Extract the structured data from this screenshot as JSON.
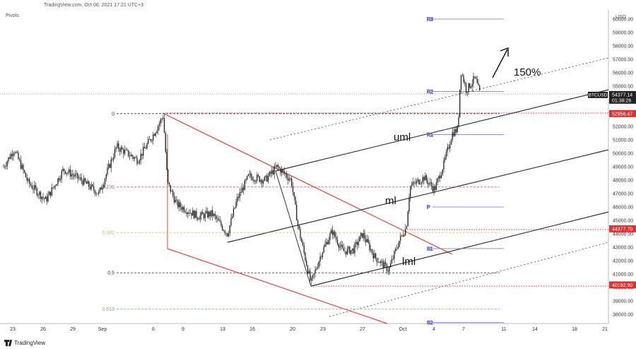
{
  "header": {
    "source_line": "TradingView.com, Oct 08, 2021 17:21 UTC+3",
    "indicator": "Pivots",
    "currency": "USD"
  },
  "footer": {
    "brand": "TradingView"
  },
  "colors": {
    "candle": "#111111",
    "pitchfork": "#333333",
    "red_lines": "#e0453a",
    "red_dotted": "#e03030",
    "pivot": "#6f6fc9",
    "fib_green": "#7ec27e",
    "fib_yellow": "#c9c24a",
    "fib_red": "#d06a6a",
    "price_tag": "#222222",
    "red_tag": "#e03030"
  },
  "chart_data": {
    "type": "candlestick",
    "symbol": "BTCUSD",
    "ylim": [
      37000,
      61500
    ],
    "y_ticks": [
      38000,
      39000,
      40000,
      41000,
      42000,
      43000,
      44000,
      45000,
      46000,
      47000,
      48000,
      49000,
      50000,
      51000,
      52000,
      53000,
      54000,
      55000,
      56000,
      57000,
      58000,
      59000,
      60000
    ],
    "y_tick_labels": [
      "38000.00",
      "39000.00",
      "40000.00",
      "41000.00",
      "42000.00",
      "43000.00",
      "44000.00",
      "45000.00",
      "46000.00",
      "47000.00",
      "48000.00",
      "49000.00",
      "50000.00",
      "51000.00",
      "52000.00",
      "53000.00",
      "54000.00",
      "55000.00",
      "56000.00",
      "57000.00",
      "58000.00",
      "59000.00",
      "60000.00"
    ],
    "x_ticks": [
      "23",
      "26",
      "29",
      "Sep",
      "6",
      "9",
      "13",
      "16",
      "20",
      "23",
      "27",
      "Oct",
      "4",
      "7",
      "11",
      "14",
      "18",
      "21"
    ],
    "price_tags": [
      {
        "value": 54377.14,
        "label": "54377.14",
        "sub": "01:38:26",
        "name": "BTCUSD",
        "kind": "current"
      },
      {
        "value": 52956.47,
        "label": "52956.47",
        "kind": "level"
      },
      {
        "value": 44377.7,
        "label": "44377.70",
        "kind": "level"
      },
      {
        "value": 40192.9,
        "label": "40192.90",
        "kind": "level"
      }
    ],
    "pivots": [
      {
        "label": "R3",
        "value": 60000
      },
      {
        "label": "R2",
        "value": 54600
      },
      {
        "label": "R1",
        "value": 51400
      },
      {
        "label": "P",
        "value": 46000
      },
      {
        "label": "S1",
        "value": 42900
      },
      {
        "label": "S2",
        "value": 37400
      }
    ],
    "fib_levels": [
      {
        "label": "0",
        "value": 52956
      },
      {
        "label": "0.236",
        "value": 47500
      },
      {
        "label": "0.382",
        "value": 44100
      },
      {
        "label": "0.5",
        "value": 41100
      },
      {
        "label": "0.618",
        "value": 38400
      }
    ],
    "annotations": [
      {
        "text": "uml"
      },
      {
        "text": "ml"
      },
      {
        "text": "lml"
      },
      {
        "text": "150%"
      }
    ],
    "candles": []
  }
}
